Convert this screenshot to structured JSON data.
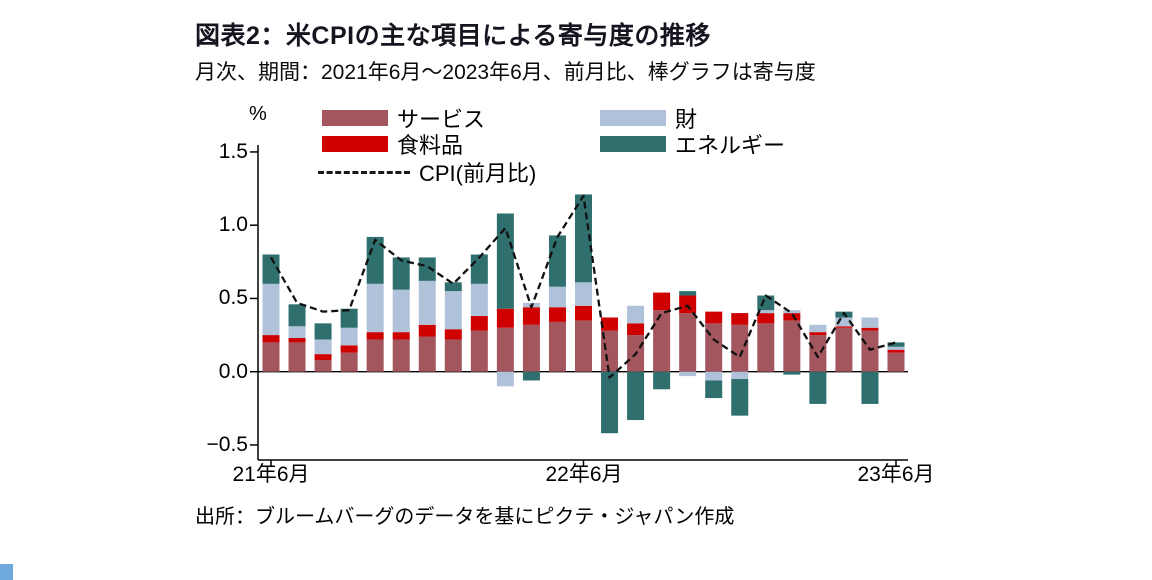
{
  "header": {
    "title": "図表2：米CPIの主な項目による寄与度の推移",
    "subtitle": "月次、期間：2021年6月～2023年6月、前月比、棒グラフは寄与度"
  },
  "legend": {
    "items": [
      {
        "key": "services",
        "label": "サービス",
        "color": "#A4565E"
      },
      {
        "key": "food",
        "label": "食料品",
        "color": "#CE0000"
      },
      {
        "key": "goods",
        "label": "財",
        "color": "#AFC2D9"
      },
      {
        "key": "energy",
        "label": "エネルギー",
        "color": "#2F706F"
      }
    ],
    "line_label": "CPI(前月比)"
  },
  "axis": {
    "unit": "%",
    "y_ticks": [
      "1.5",
      "1.0",
      "0.5",
      "0.0",
      "−0.5"
    ],
    "x_ticks": [
      "21年6月",
      "22年6月",
      "23年6月"
    ]
  },
  "source": "出所：ブルームバーグのデータを基にピクテ・ジャパン作成",
  "chart_data": {
    "type": "bar",
    "subtype": "stacked-bar-with-line",
    "title": "図表2：米CPIの主な項目による寄与度の推移",
    "ylabel": "%",
    "ylim": [
      -0.5,
      1.5
    ],
    "y_ticks": [
      1.5,
      1.0,
      0.5,
      0.0,
      -0.5
    ],
    "x": [
      "2021-06",
      "2021-07",
      "2021-08",
      "2021-09",
      "2021-10",
      "2021-11",
      "2021-12",
      "2022-01",
      "2022-02",
      "2022-03",
      "2022-04",
      "2022-05",
      "2022-06",
      "2022-07",
      "2022-08",
      "2022-09",
      "2022-10",
      "2022-11",
      "2022-12",
      "2023-01",
      "2023-02",
      "2023-03",
      "2023-04",
      "2023-05",
      "2023-06"
    ],
    "x_tick_labels": {
      "2021-06": "21年6月",
      "2022-06": "22年6月",
      "2023-06": "23年6月"
    },
    "series": [
      {
        "name": "サービス",
        "color": "#A4565E",
        "values": [
          0.2,
          0.2,
          0.08,
          0.13,
          0.22,
          0.22,
          0.24,
          0.22,
          0.28,
          0.3,
          0.32,
          0.34,
          0.35,
          0.28,
          0.25,
          0.42,
          0.4,
          0.33,
          0.32,
          0.33,
          0.35,
          0.25,
          0.3,
          0.28,
          0.13
        ]
      },
      {
        "name": "食料品",
        "color": "#CE0000",
        "values": [
          0.05,
          0.03,
          0.04,
          0.05,
          0.05,
          0.05,
          0.08,
          0.07,
          0.1,
          0.13,
          0.12,
          0.1,
          0.1,
          0.09,
          0.08,
          0.12,
          0.12,
          0.08,
          0.08,
          0.07,
          0.05,
          0.02,
          0.01,
          0.02,
          0.02
        ]
      },
      {
        "name": "財",
        "color": "#AFC2D9",
        "values": [
          0.35,
          0.08,
          0.1,
          0.12,
          0.33,
          0.29,
          0.3,
          0.26,
          0.22,
          -0.1,
          0.03,
          0.14,
          0.16,
          0.0,
          0.12,
          0.0,
          -0.03,
          -0.06,
          -0.05,
          0.02,
          0.02,
          0.05,
          0.06,
          0.07,
          0.02
        ]
      },
      {
        "name": "エネルギー",
        "color": "#2F706F",
        "values": [
          0.2,
          0.15,
          0.11,
          0.13,
          0.32,
          0.22,
          0.16,
          0.06,
          0.2,
          0.65,
          -0.06,
          0.35,
          0.6,
          -0.42,
          -0.33,
          -0.12,
          0.03,
          -0.12,
          -0.25,
          0.1,
          -0.02,
          -0.22,
          0.04,
          -0.22,
          0.03
        ]
      }
    ],
    "line": {
      "name": "CPI(前月比)",
      "color": "#111111",
      "values": [
        0.78,
        0.47,
        0.41,
        0.42,
        0.9,
        0.76,
        0.72,
        0.6,
        0.78,
        0.98,
        0.44,
        0.92,
        1.2,
        -0.04,
        0.12,
        0.4,
        0.45,
        0.22,
        0.1,
        0.52,
        0.4,
        0.1,
        0.4,
        0.15,
        0.2
      ]
    },
    "legend_position": "top",
    "grid": false
  }
}
